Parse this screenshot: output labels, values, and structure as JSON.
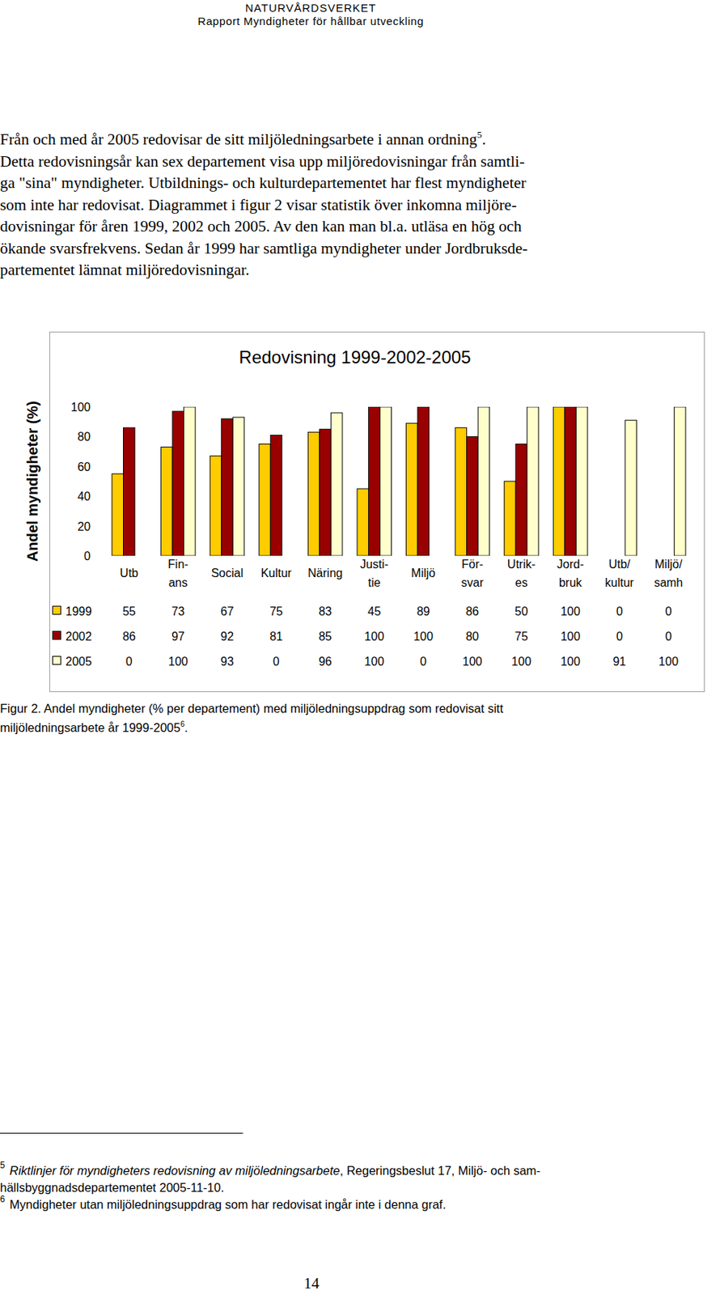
{
  "header": {
    "organization": "NATURVÅRDSVERKET",
    "report": "Rapport Myndigheter för hållbar utveckling"
  },
  "body": {
    "lines": [
      {
        "text": "Från och med år 2005 redovisar de sitt miljöledningsarbete i annan ordning",
        "footnote_ref": "5",
        "after": "."
      },
      {
        "text": "Detta redovisningsår kan sex departement visa upp miljöredovisningar från samtli-"
      },
      {
        "text": "ga \"sina\" myndigheter. Utbildnings- och kulturdepartementet har flest myndigheter"
      },
      {
        "text": "som inte har redovisat. Diagrammet i figur 2 visar statistik över inkomna miljöre-"
      },
      {
        "text": "dovisningar för åren 1999, 2002 och 2005. Av den kan man bl.a. utläsa en hög och"
      },
      {
        "text": "ökande svarsfrekvens. Sedan år 1999 har samtliga myndigheter under Jordbruksde-"
      },
      {
        "text": "partementet lämnat miljöredovisningar."
      }
    ]
  },
  "chart_data": {
    "type": "bar",
    "title": "Redovisning 1999-2002-2005",
    "y_label": "Andel myndigheter (%)",
    "categories": [
      "Utb",
      "Fin-\nans",
      "Social",
      "Kultur",
      "Näring",
      "Justi-\ntie",
      "Miljö",
      "För-\nsvar",
      "Utrik-\nes",
      "Jord-\nbruk",
      "Utb/\nkultur",
      "Miljö/\nsamh"
    ],
    "series": [
      {
        "name": "1999",
        "color": "#ffcc00",
        "values": [
          55,
          73,
          67,
          75,
          83,
          45,
          89,
          86,
          50,
          100,
          0,
          0
        ]
      },
      {
        "name": "2002",
        "color": "#990000",
        "values": [
          86,
          97,
          92,
          81,
          85,
          100,
          100,
          80,
          75,
          100,
          0,
          0
        ]
      },
      {
        "name": "2005",
        "color": "#ffffcc",
        "values": [
          0,
          100,
          93,
          0,
          96,
          100,
          0,
          100,
          100,
          100,
          91,
          100
        ]
      }
    ],
    "ylim": [
      0,
      100
    ],
    "yticks": [
      0,
      20,
      40,
      60,
      80,
      100
    ],
    "grid": false
  },
  "caption": {
    "lines": [
      {
        "text": "Figur 2. Andel myndigheter (% per departement) med miljöledningsuppdrag som redovisat sitt"
      },
      {
        "text": "miljöledningsarbete år 1999-2005",
        "footnote_ref": "6",
        "after": "."
      }
    ]
  },
  "footnotes": [
    {
      "number": "5",
      "lines": [
        {
          "italic": "Riktlinjer för myndigheters redovisning av miljöledningsarbete",
          "text": ", Regeringsbeslut 17, Miljö- och sam-"
        },
        {
          "text": "hällsbyggnadsdepartementet 2005-11-10."
        }
      ]
    },
    {
      "number": "6",
      "lines": [
        {
          "text": "Myndigheter utan miljöledningsuppdrag som har redovisat ingår inte i denna graf."
        }
      ]
    }
  ],
  "page_number": "14"
}
